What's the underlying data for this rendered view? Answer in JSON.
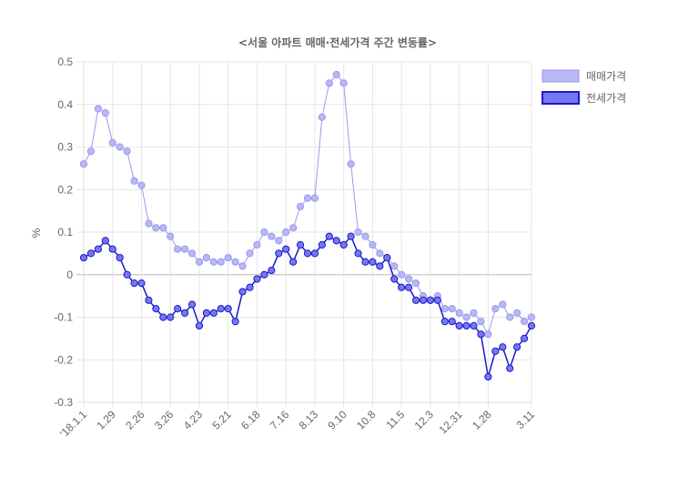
{
  "chart_data": {
    "type": "line",
    "title": "<서울 아파트 매매·전세가격 주간 변동률>",
    "ylabel": "%",
    "xlabel": "",
    "ylim": [
      -0.3,
      0.5
    ],
    "yticks": [
      "0.5",
      "0.4",
      "0.3",
      "0.2",
      "0.1",
      "0",
      "-0.1",
      "-0.2",
      "-0.3"
    ],
    "ytick_values": [
      0.5,
      0.4,
      0.3,
      0.2,
      0.1,
      0,
      -0.1,
      -0.2,
      -0.3
    ],
    "xtick_labels": [
      {
        "index": 0,
        "label": "'18.1.1"
      },
      {
        "index": 4,
        "label": "1.29"
      },
      {
        "index": 8,
        "label": "2.26"
      },
      {
        "index": 12,
        "label": "3.26"
      },
      {
        "index": 16,
        "label": "4.23"
      },
      {
        "index": 20,
        "label": "5.21"
      },
      {
        "index": 24,
        "label": "6.18"
      },
      {
        "index": 28,
        "label": "7.16"
      },
      {
        "index": 32,
        "label": "8.13"
      },
      {
        "index": 36,
        "label": "9.10"
      },
      {
        "index": 40,
        "label": "10.8"
      },
      {
        "index": 44,
        "label": "11.5"
      },
      {
        "index": 48,
        "label": "12.3"
      },
      {
        "index": 52,
        "label": "12.31"
      },
      {
        "index": 56,
        "label": "1.28"
      },
      {
        "index": 62,
        "label": "3.11"
      }
    ],
    "grid": true,
    "legend_position": "right",
    "series": [
      {
        "name": "매매가격",
        "color": "#9999ee",
        "fill": "#b8b8f4",
        "values": [
          0.26,
          0.29,
          0.39,
          0.38,
          0.31,
          0.3,
          0.29,
          0.22,
          0.21,
          0.12,
          0.11,
          0.11,
          0.09,
          0.06,
          0.06,
          0.05,
          0.03,
          0.04,
          0.03,
          0.03,
          0.04,
          0.03,
          0.02,
          0.05,
          0.07,
          0.1,
          0.09,
          0.08,
          0.1,
          0.11,
          0.16,
          0.18,
          0.18,
          0.37,
          0.45,
          0.47,
          0.45,
          0.26,
          0.1,
          0.09,
          0.07,
          0.05,
          0.04,
          0.02,
          0.0,
          -0.01,
          -0.02,
          -0.05,
          -0.06,
          -0.05,
          -0.08,
          -0.08,
          -0.09,
          -0.1,
          -0.09,
          -0.11,
          -0.14,
          -0.08,
          -0.07,
          -0.1,
          -0.09,
          -0.11,
          -0.1
        ]
      },
      {
        "name": "전세가격",
        "color": "#1a1acc",
        "fill": "#7777ee",
        "values": [
          0.04,
          0.05,
          0.06,
          0.08,
          0.06,
          0.04,
          0.0,
          -0.02,
          -0.02,
          -0.06,
          -0.08,
          -0.1,
          -0.1,
          -0.08,
          -0.09,
          -0.07,
          -0.12,
          -0.09,
          -0.09,
          -0.08,
          -0.08,
          -0.11,
          -0.04,
          -0.03,
          -0.01,
          0.0,
          0.01,
          0.05,
          0.06,
          0.03,
          0.07,
          0.05,
          0.05,
          0.07,
          0.09,
          0.08,
          0.07,
          0.09,
          0.05,
          0.03,
          0.03,
          0.02,
          0.04,
          -0.01,
          -0.03,
          -0.03,
          -0.06,
          -0.06,
          -0.06,
          -0.06,
          -0.11,
          -0.11,
          -0.12,
          -0.12,
          -0.12,
          -0.14,
          -0.24,
          -0.18,
          -0.17,
          -0.22,
          -0.17,
          -0.15,
          -0.12
        ]
      }
    ]
  }
}
